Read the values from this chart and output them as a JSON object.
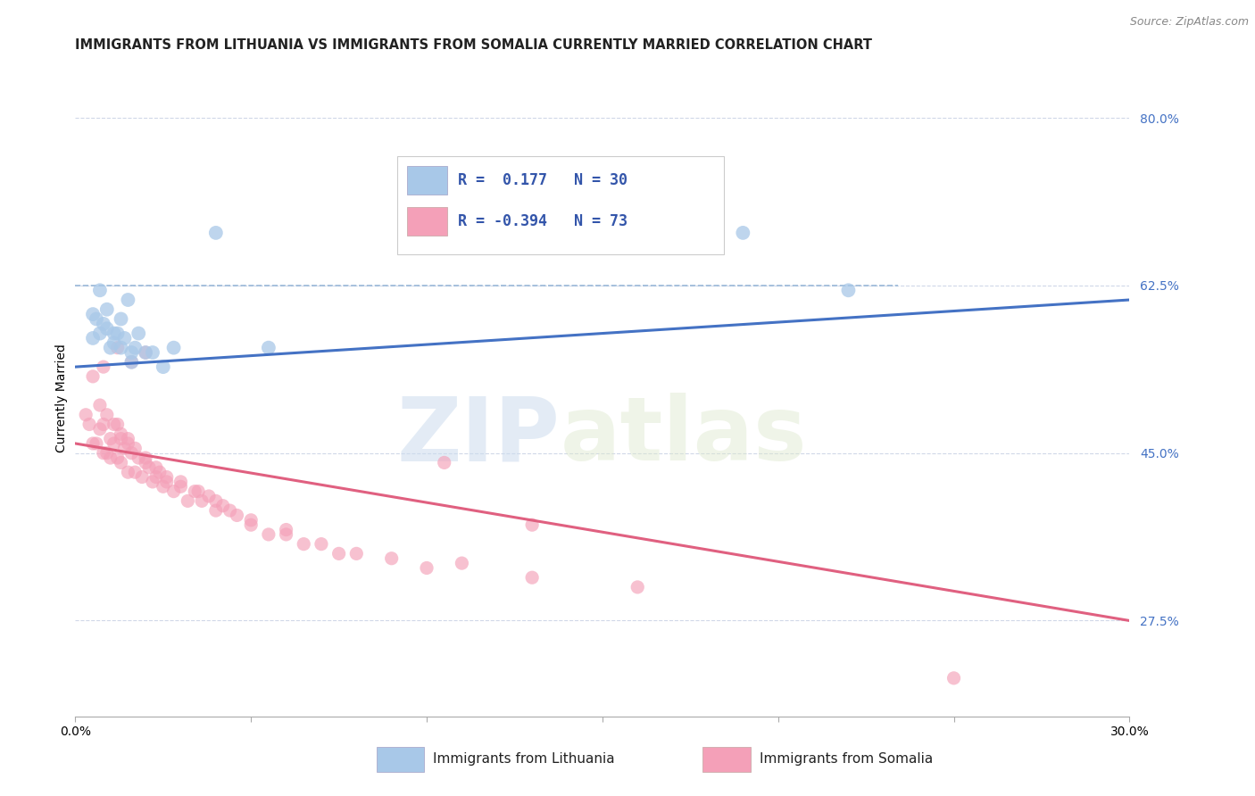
{
  "title": "IMMIGRANTS FROM LITHUANIA VS IMMIGRANTS FROM SOMALIA CURRENTLY MARRIED CORRELATION CHART",
  "source": "Source: ZipAtlas.com",
  "ylabel": "Currently Married",
  "xmin": 0.0,
  "xmax": 0.3,
  "ymin": 0.175,
  "ymax": 0.84,
  "yticks": [
    0.275,
    0.45,
    0.625,
    0.8
  ],
  "ytick_labels": [
    "27.5%",
    "45.0%",
    "62.5%",
    "80.0%"
  ],
  "xtick_positions": [
    0.0,
    0.05,
    0.1,
    0.15,
    0.2,
    0.25,
    0.3
  ],
  "xtick_labels": [
    "0.0%",
    "",
    "",
    "",
    "",
    "",
    "30.0%"
  ],
  "legend_r1": "R =  0.177",
  "legend_n1": "N = 30",
  "legend_r2": "R = -0.394",
  "legend_n2": "N = 73",
  "color_lithuania": "#a8c8e8",
  "color_somalia": "#f4a0b8",
  "line_color_lithuania": "#4472c4",
  "line_color_somalia": "#e06080",
  "scatter_lithuania_x": [
    0.005,
    0.006,
    0.007,
    0.008,
    0.009,
    0.01,
    0.011,
    0.012,
    0.013,
    0.014,
    0.015,
    0.016,
    0.017,
    0.018,
    0.02,
    0.022,
    0.025,
    0.028,
    0.005,
    0.007,
    0.009,
    0.011,
    0.013,
    0.016,
    0.04,
    0.15,
    0.19,
    0.22,
    0.095,
    0.055
  ],
  "scatter_lithuania_y": [
    0.595,
    0.59,
    0.575,
    0.585,
    0.58,
    0.56,
    0.565,
    0.575,
    0.59,
    0.57,
    0.61,
    0.555,
    0.56,
    0.575,
    0.555,
    0.555,
    0.54,
    0.56,
    0.57,
    0.62,
    0.6,
    0.575,
    0.56,
    0.545,
    0.68,
    0.665,
    0.68,
    0.62,
    0.68,
    0.56
  ],
  "scatter_somalia_x": [
    0.003,
    0.004,
    0.005,
    0.006,
    0.007,
    0.008,
    0.008,
    0.009,
    0.01,
    0.01,
    0.011,
    0.012,
    0.012,
    0.013,
    0.013,
    0.014,
    0.015,
    0.015,
    0.016,
    0.017,
    0.018,
    0.019,
    0.02,
    0.021,
    0.022,
    0.023,
    0.024,
    0.025,
    0.026,
    0.028,
    0.03,
    0.032,
    0.034,
    0.036,
    0.038,
    0.04,
    0.042,
    0.044,
    0.046,
    0.05,
    0.055,
    0.06,
    0.065,
    0.07,
    0.075,
    0.08,
    0.09,
    0.1,
    0.11,
    0.13,
    0.007,
    0.009,
    0.011,
    0.013,
    0.015,
    0.017,
    0.02,
    0.023,
    0.026,
    0.03,
    0.035,
    0.04,
    0.05,
    0.06,
    0.13,
    0.105,
    0.25,
    0.005,
    0.008,
    0.012,
    0.016,
    0.02,
    0.16
  ],
  "scatter_somalia_y": [
    0.49,
    0.48,
    0.46,
    0.46,
    0.475,
    0.48,
    0.45,
    0.45,
    0.465,
    0.445,
    0.46,
    0.48,
    0.445,
    0.465,
    0.44,
    0.455,
    0.46,
    0.43,
    0.45,
    0.43,
    0.445,
    0.425,
    0.44,
    0.435,
    0.42,
    0.425,
    0.43,
    0.415,
    0.42,
    0.41,
    0.415,
    0.4,
    0.41,
    0.4,
    0.405,
    0.39,
    0.395,
    0.39,
    0.385,
    0.375,
    0.365,
    0.365,
    0.355,
    0.355,
    0.345,
    0.345,
    0.34,
    0.33,
    0.335,
    0.32,
    0.5,
    0.49,
    0.48,
    0.47,
    0.465,
    0.455,
    0.445,
    0.435,
    0.425,
    0.42,
    0.41,
    0.4,
    0.38,
    0.37,
    0.375,
    0.44,
    0.215,
    0.53,
    0.54,
    0.56,
    0.545,
    0.555,
    0.31
  ],
  "trendline_lith_x0": 0.0,
  "trendline_lith_x1": 0.3,
  "trendline_lith_y0": 0.54,
  "trendline_lith_y1": 0.61,
  "trendline_som_x0": 0.0,
  "trendline_som_x1": 0.3,
  "trendline_som_y0": 0.46,
  "trendline_som_y1": 0.275,
  "dashed_line_y": 0.625,
  "watermark_zip": "ZIP",
  "watermark_atlas": "atlas",
  "background_color": "#ffffff",
  "gridline_color": "#d0d8e8",
  "title_fontsize": 10.5,
  "tick_fontsize": 10,
  "source_fontsize": 9,
  "legend_fontsize": 12
}
